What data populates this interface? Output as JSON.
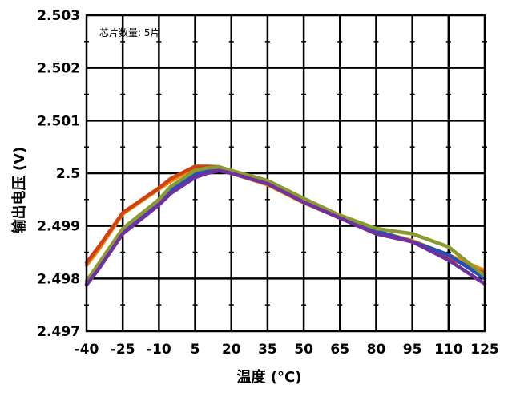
{
  "chart_data": {
    "type": "line",
    "annotation": "芯片数量: 5片",
    "xlabel": "温度 (°C)",
    "ylabel": "输出电压 (V)",
    "x_tick_labels": [
      "-40",
      "-25",
      "-10",
      "5",
      "20",
      "35",
      "50",
      "65",
      "80",
      "95",
      "110",
      "125"
    ],
    "y_tick_labels": [
      "2.503",
      "2.502",
      "2.501",
      "2.5",
      "2.499",
      "2.498",
      "2.497"
    ],
    "ylim": [
      2.497,
      2.503
    ],
    "grid": true,
    "legend": "none",
    "series": [
      {
        "color": "#f08c00",
        "x": [
          -40,
          -35,
          -25,
          -10,
          -5,
          5,
          10,
          15,
          20,
          35,
          50,
          65,
          80,
          95,
          110,
          125
        ],
        "values": [
          2.49825,
          2.49855,
          2.49923,
          2.4997,
          2.49985,
          2.50012,
          2.50012,
          2.5001,
          2.5,
          2.49978,
          2.49944,
          2.49915,
          2.4989,
          2.49872,
          2.49845,
          2.49815
        ]
      },
      {
        "color": "#d04010",
        "x": [
          -40,
          -35,
          -25,
          -10,
          -5,
          5,
          10,
          15,
          20,
          35,
          50,
          65,
          80,
          95,
          110,
          125
        ],
        "values": [
          2.4983,
          2.4986,
          2.49925,
          2.49972,
          2.4999,
          2.50013,
          2.50013,
          2.50012,
          2.50002,
          2.4998,
          2.49946,
          2.49915,
          2.49888,
          2.4987,
          2.4984,
          2.4981
        ]
      },
      {
        "color": "#2050c0",
        "x": [
          -40,
          -35,
          -25,
          -10,
          -5,
          5,
          10,
          15,
          20,
          35,
          50,
          65,
          80,
          95,
          110,
          125
        ],
        "values": [
          2.4979,
          2.49825,
          2.4989,
          2.49945,
          2.49968,
          2.49998,
          2.50005,
          2.50008,
          2.50002,
          2.49985,
          2.4995,
          2.49918,
          2.4989,
          2.4987,
          2.49845,
          2.498
        ]
      },
      {
        "color": "#8a9a30",
        "x": [
          -40,
          -35,
          -25,
          -10,
          -5,
          5,
          10,
          15,
          20,
          35,
          50,
          65,
          80,
          95,
          110,
          125
        ],
        "values": [
          2.49795,
          2.49828,
          2.49895,
          2.4995,
          2.49975,
          2.50005,
          2.5001,
          2.50012,
          2.50005,
          2.49986,
          2.49952,
          2.4992,
          2.49895,
          2.49885,
          2.4986,
          2.49805
        ]
      },
      {
        "color": "#7030a0",
        "x": [
          -40,
          -35,
          -25,
          -10,
          -5,
          5,
          10,
          15,
          20,
          35,
          50,
          65,
          80,
          95,
          110,
          125
        ],
        "values": [
          2.49788,
          2.49818,
          2.49885,
          2.4994,
          2.49962,
          2.49992,
          2.5,
          2.50005,
          2.5,
          2.4998,
          2.49945,
          2.49915,
          2.49885,
          2.4987,
          2.49835,
          2.4979
        ]
      }
    ]
  }
}
